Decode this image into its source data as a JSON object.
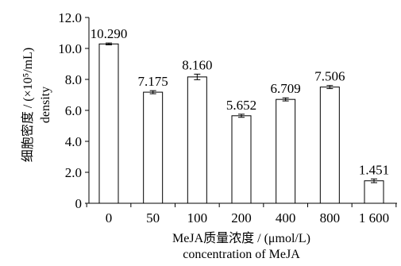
{
  "chart_data": {
    "type": "bar",
    "categories": [
      "0",
      "50",
      "100",
      "200",
      "400",
      "800",
      "1 600"
    ],
    "values": [
      10.29,
      7.175,
      8.16,
      5.652,
      6.709,
      7.506,
      1.451
    ],
    "errors": [
      0.06,
      0.1,
      0.18,
      0.1,
      0.1,
      0.1,
      0.12
    ],
    "value_labels": [
      "10.290",
      "7.175",
      "8.160",
      "5.652",
      "6.709",
      "7.506",
      "1.451"
    ],
    "ylim": [
      0,
      12
    ],
    "yticks": [
      "0",
      "2.0",
      "4.0",
      "6.0",
      "8.0",
      "10.0",
      "12.0"
    ],
    "ytick_values": [
      0,
      2,
      4,
      6,
      8,
      10,
      12
    ],
    "ylabel_lines": [
      "细胞密度 / (×10⁵/mL)",
      "density"
    ],
    "xlabel_lines": [
      "MeJA质量浓度 / (μmol/L)",
      "concentration of MeJA"
    ],
    "bar_fill": "#ffffff",
    "bar_stroke": "#000000",
    "grid": false
  }
}
